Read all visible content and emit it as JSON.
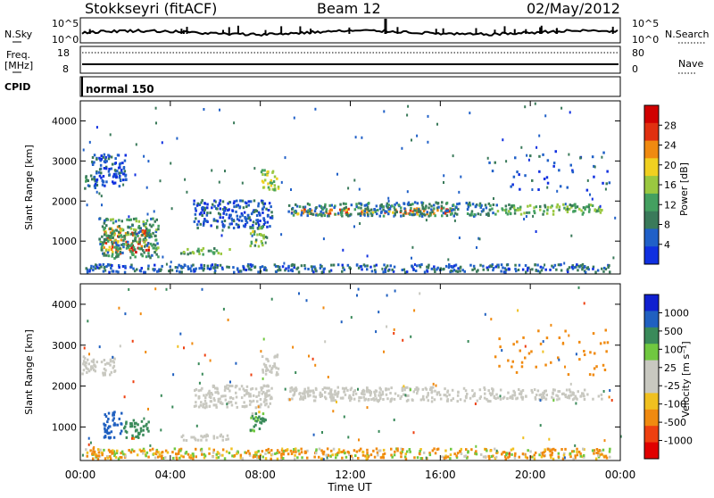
{
  "header": {
    "station": "Stokkseyri (fitACF)",
    "beam": "Beam 12",
    "date": "02/May/2012"
  },
  "status_panels": {
    "nsky_label": "N.Sky",
    "freq_label_line1": "Freq.",
    "freq_label_line2": "[MHz]",
    "cpid_label": "CPID",
    "nsearch_label": "N.Search",
    "nave_label": "Nave",
    "nsky_ticks": [
      "10^5",
      "10^0"
    ],
    "nsearch_ticks": [
      "10^5",
      "10^0"
    ],
    "freq_ticks": [
      "18",
      "8"
    ],
    "nave_ticks": [
      "80",
      "0"
    ],
    "cpid_text": "normal 150"
  },
  "colors": {
    "power_scale": [
      "#1030e0",
      "#2060c8",
      "#3a7a5a",
      "#44a060",
      "#9ac840",
      "#f0d020",
      "#f08a10",
      "#e03010",
      "#d00000"
    ],
    "velocity_scale": [
      "#e00000",
      "#ee4010",
      "#f08a10",
      "#f0c020",
      "#c8c8c0",
      "#c8c8c0",
      "#70c840",
      "#3a8a5a",
      "#2060c0",
      "#1020d0"
    ],
    "gray_scatter": "#c8c8c0"
  },
  "chart_data": [
    {
      "type": "heatmap",
      "name": "power",
      "ylabel": "Slant Range [km]",
      "colorbar_label": "Power [dB]",
      "colorbar_ticks": [
        "4",
        "8",
        "12",
        "16",
        "20",
        "24",
        "28"
      ],
      "xticks": [
        "00:00",
        "04:00",
        "08:00",
        "12:00",
        "16:00",
        "20:00",
        "00:00"
      ],
      "yticks": [
        "1000",
        "2000",
        "3000",
        "4000"
      ],
      "xlim_hours": [
        0,
        24
      ],
      "ylim_km": [
        180,
        4500
      ],
      "regions": [
        {
          "t0": 0.05,
          "t1": 0.7,
          "r0": 2300,
          "r1": 2700,
          "power": 8
        },
        {
          "t0": 0.5,
          "t1": 2.0,
          "r0": 2400,
          "r1": 3200,
          "power": 4
        },
        {
          "t0": 1.0,
          "t1": 1.8,
          "r0": 700,
          "r1": 1400,
          "power": 22
        },
        {
          "t0": 1.9,
          "t1": 3.0,
          "r0": 750,
          "r1": 1300,
          "power": 24
        },
        {
          "t0": 0.8,
          "t1": 3.5,
          "r0": 600,
          "r1": 1600,
          "power": 10
        },
        {
          "t0": 4.3,
          "t1": 6.6,
          "r0": 700,
          "r1": 850,
          "power": 12
        },
        {
          "t0": 5.0,
          "t1": 8.5,
          "r0": 1350,
          "r1": 2050,
          "power": 5
        },
        {
          "t0": 7.5,
          "t1": 8.2,
          "r0": 900,
          "r1": 1400,
          "power": 13
        },
        {
          "t0": 8.0,
          "t1": 8.8,
          "r0": 2300,
          "r1": 2800,
          "power": 14
        },
        {
          "t0": 9.3,
          "t1": 16.5,
          "r0": 1700,
          "r1": 1850,
          "power": 22
        },
        {
          "t0": 9.2,
          "t1": 18.5,
          "r0": 1650,
          "r1": 2000,
          "power": 8
        },
        {
          "t0": 18.5,
          "t1": 23.2,
          "r0": 1700,
          "r1": 1950,
          "power": 12
        },
        {
          "t0": 18.0,
          "t1": 23.5,
          "r0": 2300,
          "r1": 3300,
          "power": 4
        },
        {
          "t0": 0.2,
          "t1": 23.5,
          "r0": 250,
          "r1": 450,
          "power": 6
        }
      ]
    },
    {
      "type": "heatmap",
      "name": "velocity",
      "ylabel": "Slant Range [km]",
      "xlabel": "Time UT",
      "colorbar_label": "Velocity [m s⁻¹]",
      "colorbar_ticks": [
        "1000",
        "500",
        "100",
        "25",
        "-25",
        "-100",
        "-500",
        "-1000"
      ],
      "xticks": [
        "00:00",
        "04:00",
        "08:00",
        "12:00",
        "16:00",
        "20:00",
        "00:00"
      ],
      "yticks": [
        "1000",
        "2000",
        "3000",
        "4000"
      ],
      "xlim_hours": [
        0,
        24
      ],
      "ylim_km": [
        180,
        4500
      ],
      "regions": [
        {
          "t0": 0.05,
          "t1": 1.5,
          "r0": 2300,
          "r1": 2750,
          "vel": 0
        },
        {
          "t0": 1.0,
          "t1": 1.8,
          "r0": 750,
          "r1": 1400,
          "vel": 800
        },
        {
          "t0": 1.9,
          "t1": 3.0,
          "r0": 750,
          "r1": 1200,
          "vel": 300
        },
        {
          "t0": 4.3,
          "t1": 6.6,
          "r0": 700,
          "r1": 850,
          "vel": 0
        },
        {
          "t0": 5.0,
          "t1": 8.5,
          "r0": 1500,
          "r1": 2050,
          "vel": 0
        },
        {
          "t0": 7.5,
          "t1": 8.2,
          "r0": 900,
          "r1": 1400,
          "vel": 150
        },
        {
          "t0": 8.0,
          "t1": 8.8,
          "r0": 2300,
          "r1": 2800,
          "vel": 0
        },
        {
          "t0": 9.2,
          "t1": 18.5,
          "r0": 1650,
          "r1": 2000,
          "vel": 0
        },
        {
          "t0": 18.5,
          "t1": 23.2,
          "r0": 1700,
          "r1": 1950,
          "vel": 0
        },
        {
          "t0": 18.0,
          "t1": 23.5,
          "r0": 2300,
          "r1": 3400,
          "vel": -300
        },
        {
          "t0": 0.2,
          "t1": 23.5,
          "r0": 250,
          "r1": 500,
          "vel": -100
        }
      ]
    }
  ]
}
